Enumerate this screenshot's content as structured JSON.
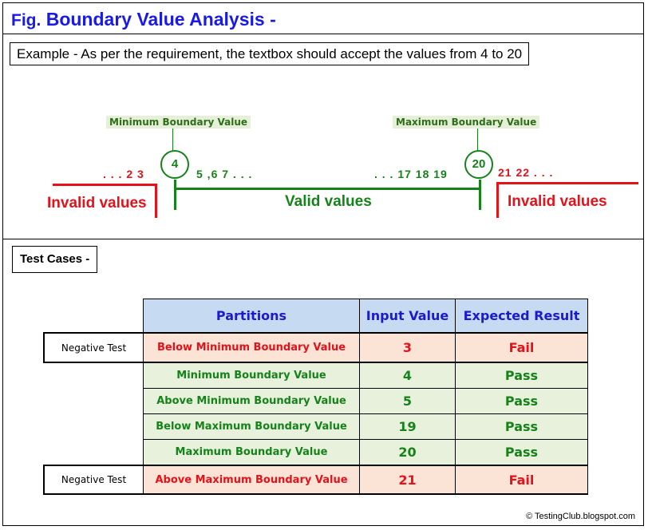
{
  "title": {
    "prefix": "Fig.",
    "text": "Boundary Value Analysis -"
  },
  "example": "Example - As per the requirement, the textbox should accept the values from 4 to 20",
  "diagram": {
    "min_label": "Minimum Boundary Value",
    "max_label": "Maximum Boundary Value",
    "min_value": "4",
    "max_value": "20",
    "left_numbers": ". . .  2  3",
    "mid_left_numbers": "5 ,6  7 . . .",
    "mid_right_numbers": ". . . 17  18  19",
    "right_numbers": "21  22 . . .",
    "invalid_left": "Invalid values",
    "valid": "Valid values",
    "invalid_right": "Invalid values"
  },
  "test_cases_label": "Test Cases -",
  "table": {
    "headers": [
      "Partitions",
      "Input Value",
      "Expected Result"
    ],
    "rows": [
      {
        "group": "Negative Test",
        "partition": "Below Minimum Boundary Value",
        "value": "3",
        "result": "Fail"
      },
      {
        "group": "",
        "partition": "Minimum Boundary Value",
        "value": "4",
        "result": "Pass"
      },
      {
        "group": "",
        "partition": "Above Minimum Boundary Value",
        "value": "5",
        "result": "Pass"
      },
      {
        "group": "",
        "partition": "Below Maximum Boundary Value",
        "value": "19",
        "result": "Pass"
      },
      {
        "group": "",
        "partition": "Maximum Boundary Value",
        "value": "20",
        "result": "Pass"
      },
      {
        "group": "Negative Test",
        "partition": "Above Maximum Boundary Value",
        "value": "21",
        "result": "Fail"
      }
    ]
  },
  "footer": "© TestingClub.blogspot.com",
  "colors": {
    "title": "#1a1ae6",
    "invalid": "#e3121b",
    "valid": "#16821a",
    "header_bg": "#c6dbf1",
    "fail_bg": "#fbe3d6",
    "pass_bg": "#e8f1dc"
  }
}
